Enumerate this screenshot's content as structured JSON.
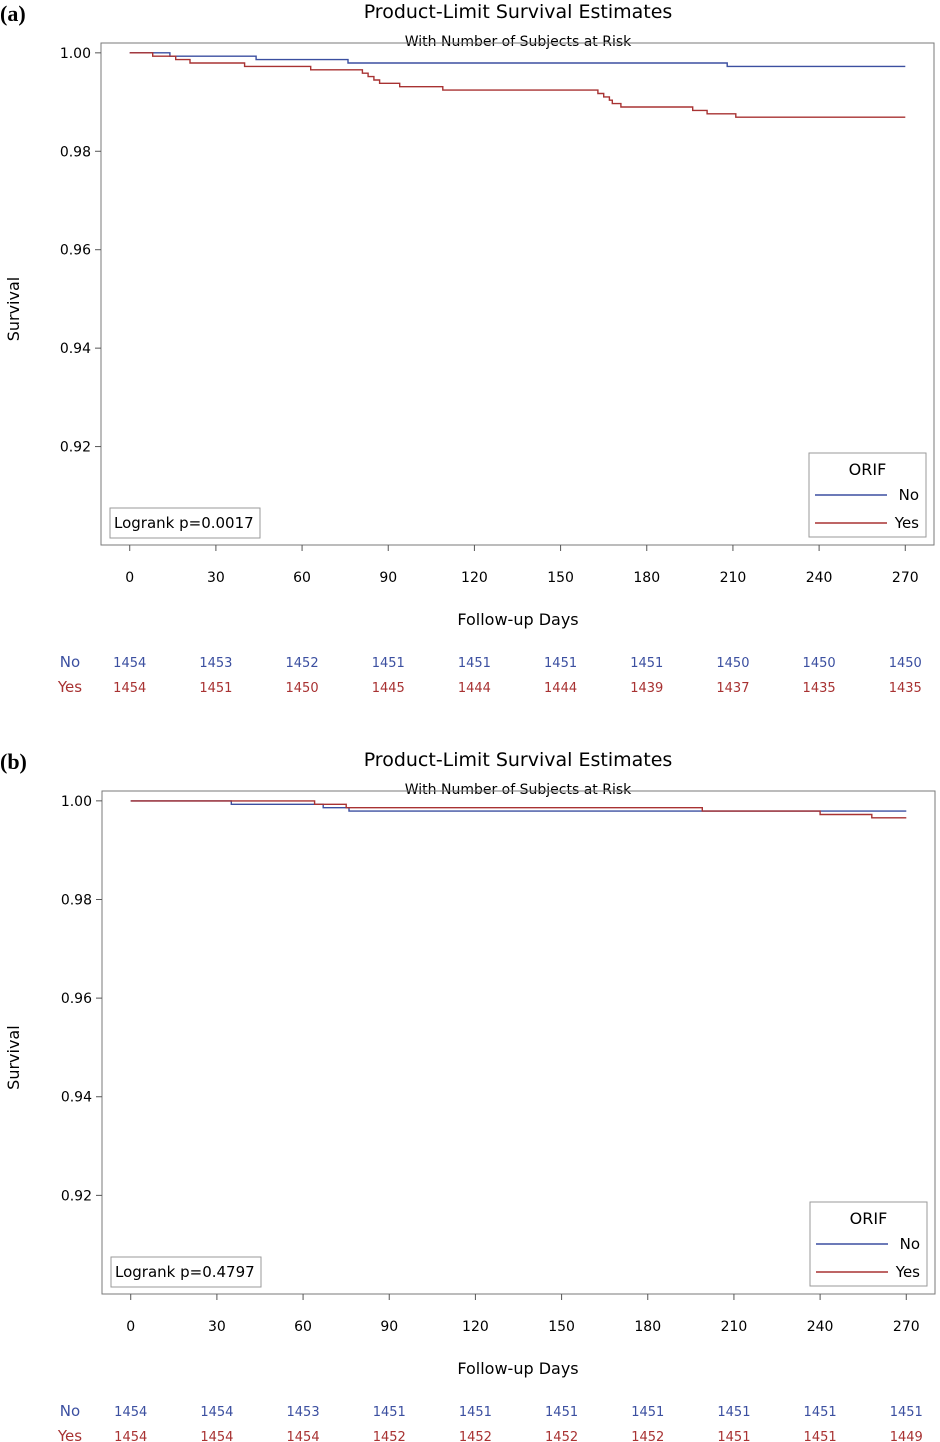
{
  "chart_data": [
    {
      "type": "line",
      "panel_label": "(a)",
      "title": "Product-Limit Survival Estimates",
      "subtitle": "With Number of Subjects at Risk",
      "xlabel": "Follow-up Days",
      "ylabel": "Survival",
      "xlim": [
        -10,
        280
      ],
      "ylim": [
        0.9,
        1.002
      ],
      "xticks": [
        0,
        30,
        60,
        90,
        120,
        150,
        180,
        210,
        240,
        270
      ],
      "yticks": [
        0.92,
        0.94,
        0.96,
        0.98,
        1.0
      ],
      "ytick_labels": [
        "0.92",
        "0.94",
        "0.96",
        "0.98",
        "1.00"
      ],
      "annotation": "Logrank p=0.0017",
      "legend": {
        "title": "ORIF",
        "placement": "bottom-right",
        "entries": [
          "No",
          "Yes"
        ]
      },
      "series": [
        {
          "name": "No",
          "color": "#3b4fa0",
          "x": [
            0,
            9,
            14,
            44,
            76,
            208,
            270
          ],
          "y": [
            1.0,
            1.0,
            0.99931,
            0.99862,
            0.99793,
            0.99724,
            0.99724
          ]
        },
        {
          "name": "Yes",
          "color": "#a83232",
          "x": [
            0,
            8,
            16,
            21,
            40,
            63,
            81,
            83,
            85,
            87,
            94,
            109,
            163,
            165,
            167,
            168,
            171,
            196,
            201,
            211,
            219,
            270
          ],
          "y": [
            1.0,
            0.99931,
            0.99862,
            0.99793,
            0.99724,
            0.99656,
            0.99587,
            0.99518,
            0.99449,
            0.99381,
            0.99312,
            0.99243,
            0.99174,
            0.99105,
            0.99037,
            0.98968,
            0.98899,
            0.9883,
            0.98762,
            0.98693,
            0.98693,
            0.98693
          ]
        }
      ],
      "at_risk": {
        "x": [
          0,
          30,
          60,
          90,
          120,
          150,
          180,
          210,
          240,
          270
        ],
        "rows": [
          {
            "name": "No",
            "values": [
              "1454",
              "1453",
              "1452",
              "1451",
              "1451",
              "1451",
              "1451",
              "1450",
              "1450",
              "1450"
            ]
          },
          {
            "name": "Yes",
            "values": [
              "1454",
              "1451",
              "1450",
              "1445",
              "1444",
              "1444",
              "1439",
              "1437",
              "1435",
              "1435"
            ]
          }
        ]
      }
    },
    {
      "type": "line",
      "panel_label": "(b)",
      "title": "Product-Limit Survival Estimates",
      "subtitle": "With Number of Subjects at Risk",
      "xlabel": "Follow-up Days",
      "ylabel": "Survival",
      "xlim": [
        -10,
        280
      ],
      "ylim": [
        0.9,
        1.002
      ],
      "xticks": [
        0,
        30,
        60,
        90,
        120,
        150,
        180,
        210,
        240,
        270
      ],
      "yticks": [
        0.92,
        0.94,
        0.96,
        0.98,
        1.0
      ],
      "ytick_labels": [
        "0.92",
        "0.94",
        "0.96",
        "0.98",
        "1.00"
      ],
      "annotation": "Logrank p=0.4797",
      "legend": {
        "title": "ORIF",
        "placement": "bottom-right",
        "entries": [
          "No",
          "Yes"
        ]
      },
      "series": [
        {
          "name": "No",
          "color": "#3b4fa0",
          "x": [
            0,
            35,
            67,
            76,
            198,
            270
          ],
          "y": [
            1.0,
            0.99931,
            0.99862,
            0.99793,
            0.99793,
            0.99793
          ]
        },
        {
          "name": "Yes",
          "color": "#a83232",
          "x": [
            0,
            64,
            75,
            199,
            240,
            258,
            270
          ],
          "y": [
            1.0,
            0.99931,
            0.99862,
            0.99793,
            0.99724,
            0.99656,
            0.99656
          ]
        }
      ],
      "at_risk": {
        "x": [
          0,
          30,
          60,
          90,
          120,
          150,
          180,
          210,
          240,
          270
        ],
        "rows": [
          {
            "name": "No",
            "values": [
              "1454",
              "1454",
              "1453",
              "1451",
              "1451",
              "1451",
              "1451",
              "1451",
              "1451",
              "1451"
            ]
          },
          {
            "name": "Yes",
            "values": [
              "1454",
              "1454",
              "1454",
              "1452",
              "1452",
              "1452",
              "1452",
              "1451",
              "1451",
              "1449"
            ]
          }
        ]
      }
    }
  ]
}
